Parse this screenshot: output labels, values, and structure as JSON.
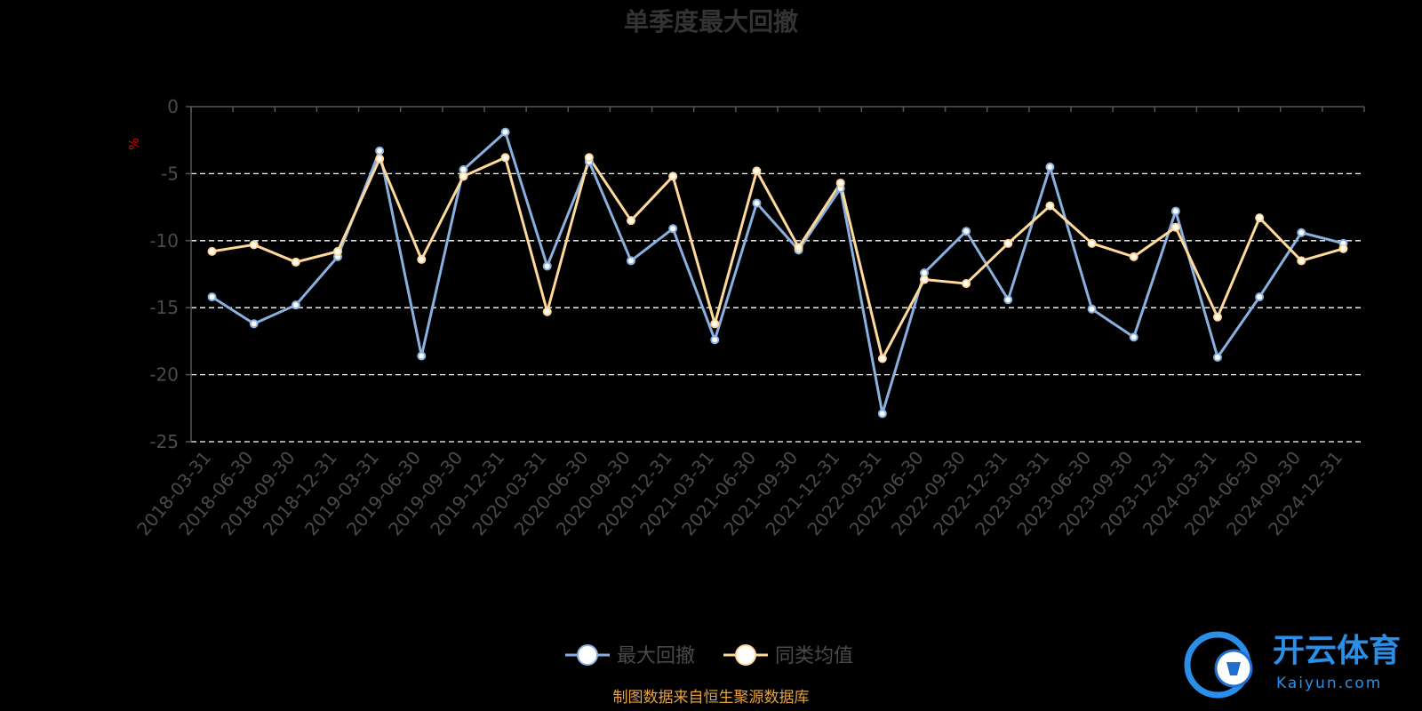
{
  "chart_data": {
    "type": "line",
    "title": "单季度最大回撤",
    "y_unit": "%",
    "ylim": [
      -25,
      0
    ],
    "yticks": [
      0,
      -5,
      -10,
      -15,
      -20,
      -25
    ],
    "grid": "dashed",
    "legend_position": "bottom-center",
    "categories": [
      "2018-03-31",
      "2018-06-30",
      "2018-09-30",
      "2018-12-31",
      "2019-03-31",
      "2019-06-30",
      "2019-09-30",
      "2019-12-31",
      "2020-03-31",
      "2020-06-30",
      "2020-09-30",
      "2020-12-31",
      "2021-03-31",
      "2021-06-30",
      "2021-09-30",
      "2021-12-31",
      "2022-03-31",
      "2022-06-30",
      "2022-09-30",
      "2022-12-31",
      "2023-03-31",
      "2023-06-30",
      "2023-09-30",
      "2023-12-31",
      "2024-03-31",
      "2024-06-30",
      "2024-09-30",
      "2024-12-31"
    ],
    "series": [
      {
        "name": "最大回撤",
        "color": "#8ab0e0",
        "values": [
          -14.2,
          -16.2,
          -14.8,
          -11.2,
          -3.3,
          -18.6,
          -4.7,
          -1.9,
          -11.9,
          -4.1,
          -11.5,
          -9.1,
          -17.4,
          -7.2,
          -10.7,
          -6.1,
          -22.9,
          -12.4,
          -9.3,
          -14.4,
          -4.5,
          -15.1,
          -17.2,
          -7.8,
          -18.7,
          -14.2,
          -9.4,
          -10.2
        ]
      },
      {
        "name": "同类均值",
        "color": "#ffd99a",
        "values": [
          -10.8,
          -10.3,
          -11.6,
          -10.8,
          -3.9,
          -11.4,
          -5.2,
          -3.8,
          -15.3,
          -3.8,
          -8.5,
          -5.2,
          -16.2,
          -4.8,
          -10.5,
          -5.7,
          -18.8,
          -12.9,
          -13.2,
          -10.2,
          -7.4,
          -10.2,
          -11.2,
          -9.0,
          -15.7,
          -8.3,
          -11.5,
          -10.6
        ]
      }
    ]
  },
  "footer": {
    "source": "制图数据来自恒生聚源数据库"
  },
  "watermark": {
    "brand_cn": "开云体育",
    "brand_en": "Kaiyun.com"
  }
}
